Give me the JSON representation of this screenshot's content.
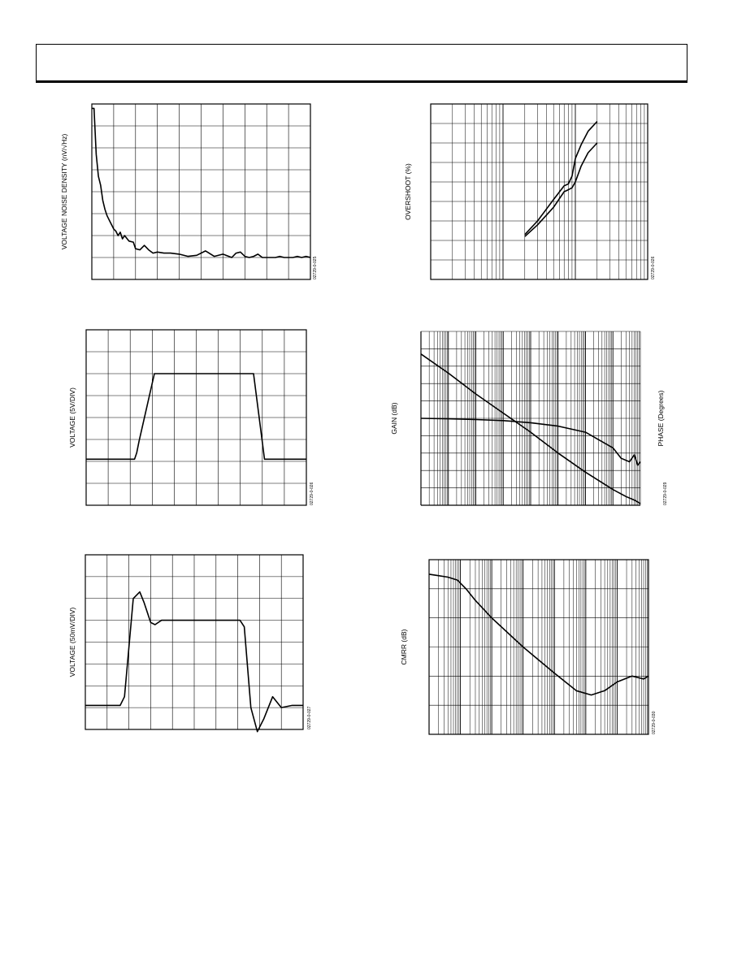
{
  "page": {
    "header_text": ""
  },
  "colors": {
    "ink": "#000000",
    "background": "#ffffff"
  },
  "chart_data": [
    {
      "id": "noise",
      "type": "line",
      "ylabel": "VOLTAGE NOISE DENSITY (nV/√Hz)",
      "fig_id": "02729-0-025",
      "xscale": "linear",
      "yscale": "linear",
      "grid": true,
      "xlim": [
        0,
        100
      ],
      "ylim": [
        0,
        8
      ],
      "series": [
        {
          "x": [
            0,
            1,
            2,
            3,
            4,
            5,
            6,
            7,
            8,
            9,
            10,
            11,
            12,
            13,
            14,
            15,
            17,
            19,
            20,
            22,
            24,
            26,
            28,
            30,
            33,
            36,
            40,
            44,
            48,
            52,
            56,
            60,
            64,
            66,
            68,
            70,
            72,
            74,
            76,
            78,
            80,
            82,
            84,
            86,
            88,
            90,
            92,
            94,
            96,
            98,
            100
          ],
          "y": [
            7.8,
            7.8,
            5.7,
            4.7,
            4.3,
            3.6,
            3.2,
            2.9,
            2.7,
            2.5,
            2.3,
            2.2,
            2.0,
            2.15,
            1.85,
            2.0,
            1.75,
            1.7,
            1.4,
            1.35,
            1.55,
            1.35,
            1.2,
            1.25,
            1.2,
            1.2,
            1.15,
            1.05,
            1.1,
            1.3,
            1.05,
            1.15,
            1.0,
            1.2,
            1.25,
            1.05,
            1.0,
            1.05,
            1.15,
            1.0,
            1.0,
            1.0,
            1.0,
            1.05,
            1.0,
            1.0,
            1.0,
            1.05,
            1.0,
            1.05,
            1.0
          ]
        }
      ]
    },
    {
      "id": "overshoot",
      "type": "line",
      "ylabel": "OVERSHOOT (%)",
      "fig_id": "02729-0-026",
      "xscale": "log",
      "yscale": "linear",
      "grid": true,
      "xlim": [
        1,
        1000
      ],
      "ylim": [
        0,
        9
      ],
      "series": [
        {
          "x": [
            20,
            30,
            50,
            70,
            80,
            90,
            100,
            120,
            150,
            200
          ],
          "y": [
            2.3,
            3.0,
            4.1,
            4.8,
            4.9,
            5.3,
            6.2,
            6.9,
            7.6,
            8.1
          ]
        },
        {
          "x": [
            20,
            30,
            50,
            70,
            80,
            90,
            100,
            120,
            150,
            200
          ],
          "y": [
            2.2,
            2.8,
            3.7,
            4.5,
            4.6,
            4.7,
            5.0,
            5.8,
            6.5,
            7.0
          ]
        }
      ]
    },
    {
      "id": "large_signal",
      "type": "line",
      "ylabel": "VOLTAGE (5V/DIV)",
      "fig_id": "02729-0-026",
      "xscale": "linear",
      "yscale": "linear",
      "grid": true,
      "xlim": [
        0,
        10
      ],
      "ylim": [
        0,
        8
      ],
      "series": [
        {
          "x": [
            0,
            2.2,
            2.3,
            2.4,
            3.1,
            4.0,
            6.0,
            7.6,
            8.1,
            10.0
          ],
          "y": [
            2.1,
            2.1,
            2.4,
            2.9,
            6.0,
            6.0,
            6.0,
            6.0,
            2.1,
            2.1
          ]
        }
      ]
    },
    {
      "id": "gain_phase",
      "type": "line",
      "ylabel": "GAIN (dB)",
      "y2label": "PHASE (Degrees)",
      "fig_id": "02729-0-029",
      "xscale": "log",
      "yscale": "linear",
      "grid": true,
      "xlim": [
        1,
        100000000
      ],
      "ylim": [
        0,
        10
      ],
      "series": [
        {
          "x": [
            1,
            10,
            100,
            1000,
            10000,
            100000,
            1000000,
            10000000,
            30000000,
            60000000,
            100000000
          ],
          "y": [
            8.7,
            7.6,
            6.4,
            5.3,
            4.2,
            3.0,
            1.9,
            0.9,
            0.5,
            0.3,
            0.1
          ]
        },
        {
          "x": [
            1,
            10,
            100,
            1000,
            10000,
            100000,
            1000000,
            10000000,
            20000000,
            40000000,
            60000000,
            80000000,
            100000000
          ],
          "y": [
            5.0,
            4.97,
            4.93,
            4.87,
            4.75,
            4.55,
            4.2,
            3.3,
            2.7,
            2.5,
            2.9,
            2.3,
            2.5
          ]
        }
      ]
    },
    {
      "id": "small_signal",
      "type": "line",
      "ylabel": "VOLTAGE (50mV/DIV)",
      "fig_id": "02729-0-027",
      "xscale": "linear",
      "yscale": "linear",
      "grid": true,
      "xlim": [
        0,
        10
      ],
      "ylim": [
        0,
        8
      ],
      "series": [
        {
          "x": [
            0,
            1.6,
            1.8,
            2.2,
            2.5,
            2.7,
            3.0,
            3.2,
            3.5,
            4.0,
            5.0,
            7.1,
            7.3,
            7.6,
            7.9,
            8.2,
            8.6,
            9.0,
            9.5,
            10.0
          ],
          "y": [
            1.1,
            1.1,
            1.5,
            6.0,
            6.3,
            5.8,
            4.9,
            4.8,
            5.0,
            5.0,
            5.0,
            5.0,
            4.7,
            1.0,
            -0.1,
            0.5,
            1.5,
            1.0,
            1.1,
            1.1
          ]
        }
      ]
    },
    {
      "id": "cmrr",
      "type": "line",
      "ylabel": "CMRR (dB)",
      "fig_id": "02729-0-030",
      "xscale": "log",
      "yscale": "linear",
      "grid": true,
      "xlim": [
        1,
        10000000
      ],
      "ylim": [
        0,
        6
      ],
      "series": [
        {
          "x": [
            1,
            2,
            4,
            8,
            15,
            30,
            100,
            1000,
            10000,
            50000,
            150000,
            400000,
            1000000,
            3000000,
            7000000,
            10000000
          ],
          "y": [
            5.5,
            5.45,
            5.4,
            5.3,
            5.0,
            4.6,
            4.0,
            3.0,
            2.1,
            1.5,
            1.35,
            1.5,
            1.8,
            2.0,
            1.9,
            2.0
          ]
        }
      ]
    }
  ]
}
